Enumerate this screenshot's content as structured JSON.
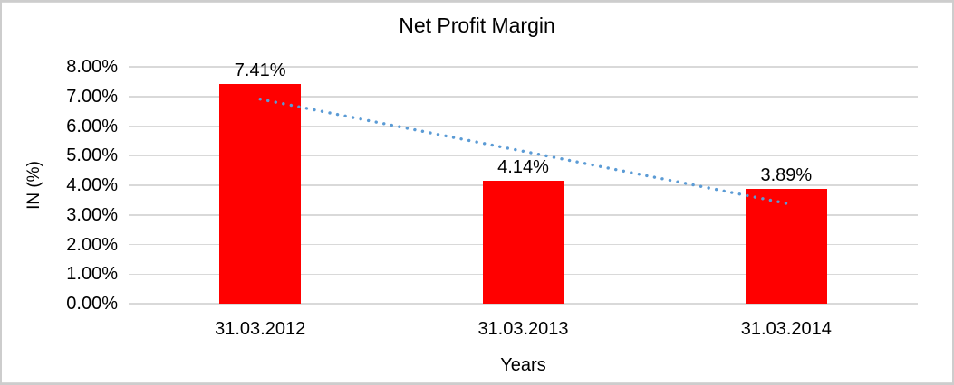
{
  "window": {
    "background_color": "#FFFFFF",
    "border_color": "#CDCDCD"
  },
  "chart_data": {
    "type": "bar",
    "title": "Net Profit Margin",
    "categories": [
      "31.03.2012",
      "31.03.2013",
      "31.03.2014"
    ],
    "values": [
      7.41,
      4.14,
      3.89
    ],
    "data_labels": [
      "7.41%",
      "4.14%",
      "3.89%"
    ],
    "xlabel": "Years",
    "ylabel": "IN (%)",
    "ylim": [
      0,
      8
    ],
    "ytick_labels": [
      "0.00%",
      "1.00%",
      "2.00%",
      "3.00%",
      "4.00%",
      "5.00%",
      "6.00%",
      "7.00%",
      "8.00%"
    ],
    "grid": true,
    "legend": "none",
    "bar_color": "#FF0000",
    "gridline_color": "#D9D9D9",
    "text_color": "#000000",
    "trendline": {
      "type": "linear",
      "style": "dotted",
      "color": "#5B9BD5",
      "start_value": 6.91,
      "end_value": 3.39,
      "start_category_index": 0,
      "end_category_index": 2
    }
  }
}
